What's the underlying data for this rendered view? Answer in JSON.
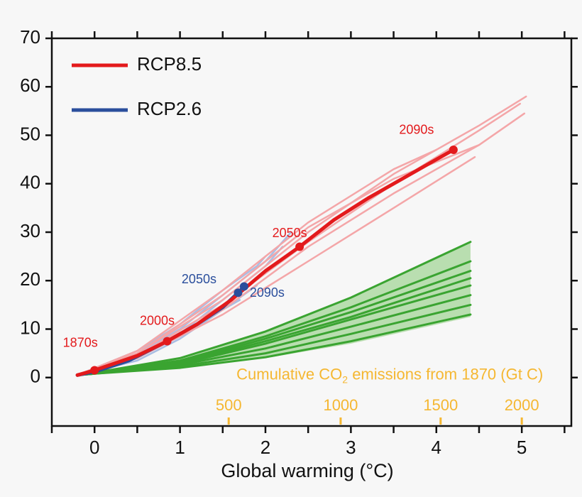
{
  "chart_data": {
    "type": "line",
    "xlabel": "Global warming (°C)",
    "xlim": [
      -0.5,
      5.58
    ],
    "ylim": [
      -10,
      70
    ],
    "xticks": [
      0,
      1,
      2,
      3,
      4,
      5
    ],
    "xminorticks": [
      -0.5,
      0.5,
      1.5,
      2.5,
      3.5,
      4.5,
      5.5
    ],
    "yticks": [
      0,
      10,
      20,
      30,
      40,
      50,
      60,
      70
    ],
    "legend": "top-left",
    "series": [
      {
        "name": "RCP8.5",
        "color": "#e31a1c",
        "x": [
          -0.2,
          0,
          0.5,
          0.85,
          1.2,
          1.6,
          2.0,
          2.4,
          2.8,
          3.2,
          3.6,
          4.0,
          4.2
        ],
        "values": [
          0.5,
          1.5,
          4.5,
          7.5,
          11,
          16,
          22,
          27,
          32.5,
          37,
          41,
          45,
          47
        ]
      },
      {
        "name": "RCP2.6",
        "color": "#2a4e9c",
        "x": [
          -0.2,
          0,
          0.4,
          0.85,
          1.2,
          1.5,
          1.68,
          1.75
        ],
        "values": [
          0.5,
          1.2,
          3.5,
          7.5,
          11,
          14.5,
          17.5,
          18.8
        ]
      }
    ],
    "rcp85_members": {
      "color": "#f4a6a8",
      "lines": [
        {
          "x": [
            -0.2,
            0.5,
            1.5,
            2.5,
            3.5,
            4.5,
            5.05
          ],
          "values": [
            0.5,
            5,
            16,
            30,
            42,
            52,
            58
          ]
        },
        {
          "x": [
            -0.2,
            0.5,
            1.5,
            2.5,
            3.5,
            4.5,
            4.98
          ],
          "values": [
            0.5,
            4.5,
            15,
            28,
            40,
            51,
            56.5
          ]
        },
        {
          "x": [
            -0.2,
            0.5,
            1.5,
            2.5,
            3.5,
            4.5,
            5.03
          ],
          "values": [
            0.5,
            4,
            14,
            27,
            38,
            48,
            54.5
          ]
        },
        {
          "x": [
            -0.2,
            0.5,
            1.5,
            2.5,
            3.5,
            4.5
          ],
          "values": [
            0.5,
            5,
            17,
            31,
            41,
            48
          ]
        },
        {
          "x": [
            -0.2,
            0.5,
            1.5,
            2.5,
            3.5,
            4.45
          ],
          "values": [
            0.5,
            4,
            13,
            24,
            35,
            45.5
          ]
        },
        {
          "x": [
            -0.2,
            0.5,
            1.5,
            2.5,
            3.5,
            4.0
          ],
          "values": [
            0.5,
            5.5,
            18,
            32,
            43,
            47
          ]
        }
      ]
    },
    "rcp26_members": {
      "color": "#a9bde3",
      "lines": [
        {
          "x": [
            -0.2,
            0.5,
            1.0,
            1.5,
            2.0,
            2.3
          ],
          "values": [
            0.5,
            5,
            10,
            17,
            24,
            30
          ]
        },
        {
          "x": [
            -0.2,
            0.5,
            1.0,
            1.5,
            2.0,
            2.2
          ],
          "values": [
            0.5,
            4,
            9,
            16,
            23,
            27
          ]
        },
        {
          "x": [
            -0.2,
            0.5,
            1.0,
            1.5,
            1.9,
            2.0
          ],
          "values": [
            0.5,
            5.5,
            11,
            18,
            23,
            25
          ]
        },
        {
          "x": [
            -0.2,
            0.5,
            1.0,
            1.5,
            1.9
          ],
          "values": [
            0.5,
            3.5,
            8,
            14,
            19
          ]
        },
        {
          "x": [
            -0.2,
            0.5,
            1.0,
            1.4,
            1.7
          ],
          "values": [
            0.5,
            4,
            8.5,
            13,
            16
          ]
        }
      ]
    },
    "green": {
      "color": "#3aa431",
      "band_color": "#b9deb0",
      "x": [
        -0.2,
        0,
        1,
        2,
        3,
        4.4
      ],
      "band": {
        "lower": [
          0.5,
          0.8,
          2,
          4,
          7,
          12.5
        ],
        "upper": [
          0.5,
          1,
          4,
          9.5,
          16.5,
          28
        ]
      },
      "lines": [
        [
          0.5,
          1,
          4,
          9.5,
          16.5,
          28
        ],
        [
          0.5,
          1,
          3.5,
          8.5,
          14.5,
          24
        ],
        [
          0.5,
          0.9,
          3.2,
          8,
          13.5,
          22
        ],
        [
          0.5,
          0.9,
          3,
          7.5,
          12.5,
          20.5
        ],
        [
          0.5,
          0.9,
          2.8,
          7,
          12,
          19
        ],
        [
          0.5,
          0.8,
          2.6,
          6,
          10.5,
          17
        ],
        [
          0.5,
          0.8,
          2.3,
          5,
          9,
          15
        ],
        [
          0.5,
          0.8,
          2,
          4.2,
          7.5,
          13
        ]
      ]
    },
    "markers": [
      {
        "label": "1870s",
        "x": 0,
        "y": 1.5,
        "color": "#e31a1c"
      },
      {
        "label": "2000s",
        "x": 0.85,
        "y": 7.5,
        "color": "#e31a1c"
      },
      {
        "label": "2050s",
        "x": 2.4,
        "y": 27,
        "color": "#e31a1c"
      },
      {
        "label": "2090s",
        "x": 4.2,
        "y": 47,
        "color": "#e31a1c"
      },
      {
        "label": "2050s",
        "x": 1.68,
        "y": 17.5,
        "color": "#2a4e9c"
      },
      {
        "label": "2090s",
        "x": 1.75,
        "y": 18.8,
        "color": "#2a4e9c"
      }
    ],
    "co2_axis": {
      "title": [
        "Cumulative CO",
        "2",
        " emissions from 1870 (Gt C)"
      ],
      "color": "#f5b731",
      "ticks": [
        500,
        1000,
        1500,
        2000
      ],
      "positions": [
        1.57,
        2.88,
        4.05,
        5.0
      ]
    }
  }
}
